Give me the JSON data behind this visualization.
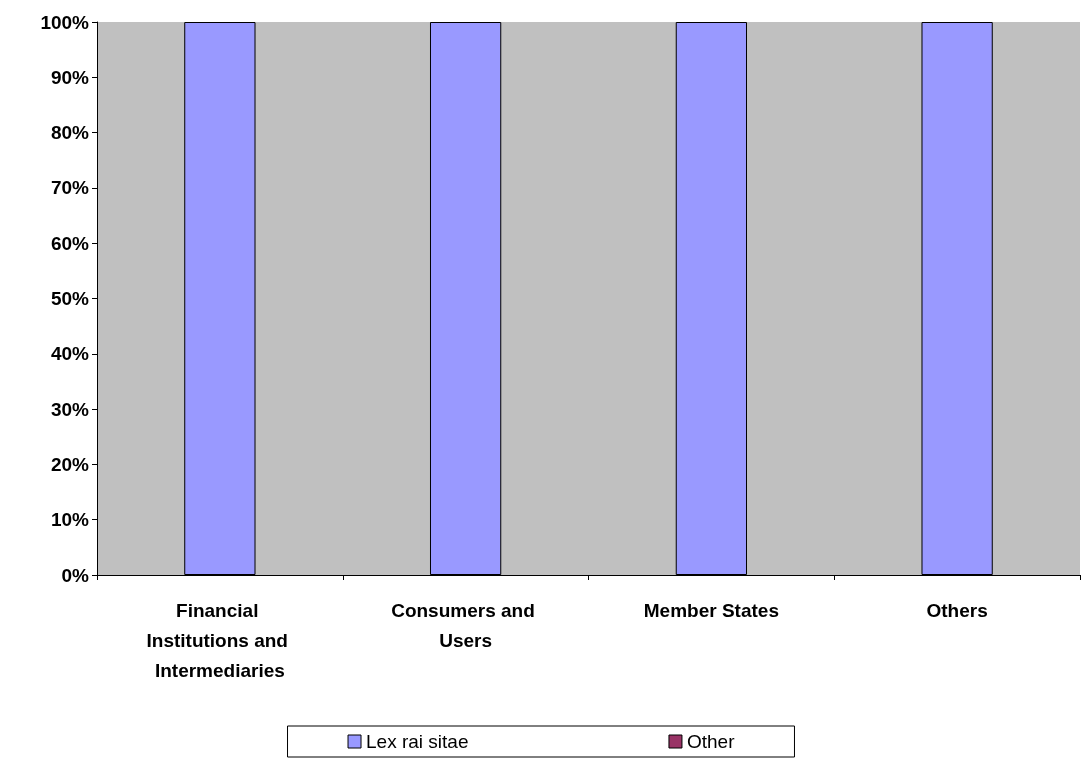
{
  "chart_data": {
    "type": "bar",
    "stacked": true,
    "categories": [
      "Financial Institutions and Intermediaries",
      "Consumers and Users",
      "Member States",
      "Others"
    ],
    "series": [
      {
        "name": "Lex rai sitae",
        "color": "#9999ff",
        "values": [
          100,
          100,
          100,
          100
        ]
      },
      {
        "name": "Other",
        "color": "#993366",
        "values": [
          0,
          0,
          0,
          0
        ]
      }
    ],
    "ylim": [
      0,
      100
    ],
    "yticks": [
      {
        "value": 0,
        "label": "0%"
      },
      {
        "value": 10,
        "label": "10%"
      },
      {
        "value": 20,
        "label": "20%"
      },
      {
        "value": 30,
        "label": "30%"
      },
      {
        "value": 40,
        "label": "40%"
      },
      {
        "value": 50,
        "label": "50%"
      },
      {
        "value": 60,
        "label": "60%"
      },
      {
        "value": 70,
        "label": "70%"
      },
      {
        "value": 80,
        "label": "80%"
      },
      {
        "value": 90,
        "label": "90%"
      },
      {
        "value": 100,
        "label": "100%"
      }
    ],
    "grid": false,
    "legend": "bottom"
  }
}
